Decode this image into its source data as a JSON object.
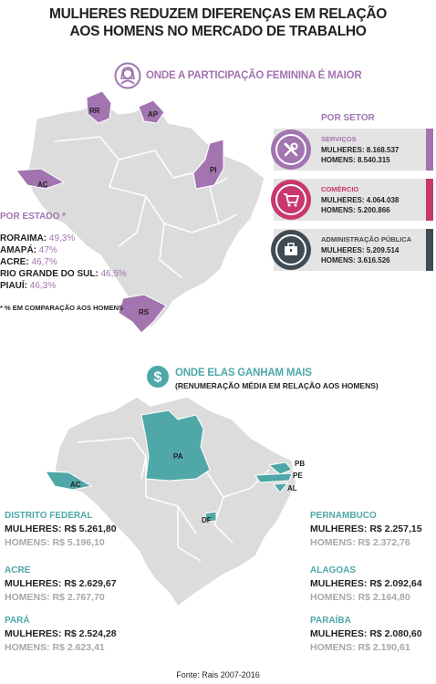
{
  "title": {
    "line1": "MULHERES REDUZEM DIFERENÇAS EM RELAÇÃO",
    "line2": "AOS HOMENS NO MERCADO DE TRABALHO"
  },
  "section1": {
    "heading": "ONDE A PARTICIPAÇÃO FEMININA É MAIOR",
    "icon": "woman-icon",
    "map_labels": [
      "RR",
      "AP",
      "PI",
      "AC",
      "RS"
    ],
    "by_state": {
      "heading": "POR ESTADO *",
      "items": [
        {
          "label": "RORAIMA:",
          "value": "49,3%"
        },
        {
          "label": "AMAPÁ:",
          "value": "47%"
        },
        {
          "label": "ACRE:",
          "value": "46,7%"
        },
        {
          "label": "RIO GRANDE DO SUL:",
          "value": "46,5%"
        },
        {
          "label": "PIAUÍ:",
          "value": "46,3%"
        }
      ],
      "note": "* % EM COMPARAÇÃO AOS HOMENS"
    },
    "by_sector": {
      "heading": "POR SETOR",
      "items": [
        {
          "name": "SERVIÇOS",
          "women": "MULHERES: 8.168.537",
          "men": "HOMENS: 8.540.315",
          "color": "#a274b0",
          "icon": "tools-icon"
        },
        {
          "name": "COMÉRCIO",
          "women": "MULHERES: 4.064.038",
          "men": "HOMENS: 5.200.866",
          "color": "#c8386f",
          "icon": "shopping-cart-icon"
        },
        {
          "name": "ADMINISTRAÇÃO PÚBLICA",
          "women": "MULHERES: 5.209.514",
          "men": "HOMENS: 3.616.526",
          "color": "#3f4a52",
          "icon": "briefcase-icon"
        }
      ]
    }
  },
  "section2": {
    "heading": "ONDE ELAS GANHAM MAIS",
    "subheading": "(RENUMERAÇÃO MÉDIA EM RELAÇÃO AOS HOMENS)",
    "icon": "dollar-icon",
    "map_labels": [
      "PA",
      "AC",
      "DF",
      "PB",
      "PE",
      "AL"
    ],
    "left": [
      {
        "name": "DISTRITO FEDERAL",
        "women": "MULHERES: R$ 5.261,80",
        "men": "HOMENS: R$ 5.196,10"
      },
      {
        "name": "ACRE",
        "women": "MULHERES: R$ 2.629,67",
        "men": "HOMENS: R$ 2.767,70"
      },
      {
        "name": "PARÁ",
        "women": "MULHERES: R$ 2.524,28",
        "men": "HOMENS: R$  2.623,41"
      }
    ],
    "right": [
      {
        "name": "PERNAMBUCO",
        "women": "MULHERES: R$ 2.257,15",
        "men": "HOMENS: R$ 2.372,76"
      },
      {
        "name": "ALAGOAS",
        "women": "MULHERES: R$ 2.092,64",
        "men": "HOMENS: R$ 2.164,80"
      },
      {
        "name": "PARAÍBA",
        "women": "MULHERES: R$ 2.080,60",
        "men": "HOMENS: R$ 2.190,61"
      }
    ]
  },
  "source": "Fonte: Rais 2007-2016",
  "colors": {
    "purple": "#a274b0",
    "teal": "#4fa7a8",
    "map_gray": "#dcdcdc",
    "magenta": "#c8386f",
    "dark": "#3f4a52"
  }
}
